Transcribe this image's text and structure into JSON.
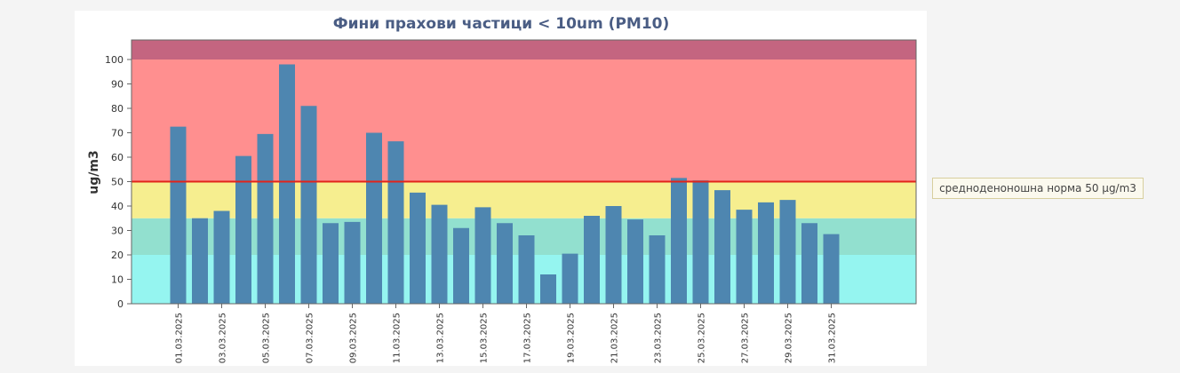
{
  "chart_data": {
    "type": "bar",
    "title": "Фини прахови частици < 10um (PM10)",
    "ylabel": "ug/m3",
    "xlabel": "",
    "ylim": [
      0,
      108
    ],
    "yticks": [
      0,
      10,
      20,
      30,
      40,
      50,
      60,
      70,
      80,
      90,
      100
    ],
    "grid": false,
    "categories": [
      "01.03.2025",
      "02.03.2025",
      "03.03.2025",
      "04.03.2025",
      "05.03.2025",
      "06.03.2025",
      "07.03.2025",
      "08.03.2025",
      "09.03.2025",
      "10.03.2025",
      "11.03.2025",
      "12.03.2025",
      "13.03.2025",
      "14.03.2025",
      "15.03.2025",
      "16.03.2025",
      "17.03.2025",
      "18.03.2025",
      "19.03.2025",
      "20.03.2025",
      "21.03.2025",
      "22.03.2025",
      "23.03.2025",
      "24.03.2025",
      "25.03.2025",
      "26.03.2025",
      "27.03.2025",
      "28.03.2025",
      "29.03.2025",
      "30.03.2025",
      "31.03.2025"
    ],
    "tick_labels": [
      "01.03.2025",
      "03.03.2025",
      "05.03.2025",
      "07.03.2025",
      "09.03.2025",
      "11.03.2025",
      "13.03.2025",
      "15.03.2025",
      "17.03.2025",
      "19.03.2025",
      "21.03.2025",
      "23.03.2025",
      "25.03.2025",
      "27.03.2025",
      "29.03.2025",
      "31.03.2025"
    ],
    "values": [
      72.5,
      35,
      38,
      60.5,
      69.5,
      98,
      81,
      33,
      33.5,
      70,
      66.5,
      45.5,
      40.5,
      31,
      39.5,
      33,
      28,
      12,
      20.5,
      36,
      40,
      34.5,
      28,
      51.5,
      50.5,
      46.5,
      38.5,
      41.5,
      42.5,
      33,
      28.5
    ],
    "bar_color": "#4e86b0",
    "threshold": {
      "value": 50,
      "color": "#e2231a",
      "label": "средноденоношна норма 50 µg/m3"
    },
    "bands": [
      {
        "from": 0,
        "to": 20,
        "color": "#95f5f0"
      },
      {
        "from": 20,
        "to": 35,
        "color": "#92e0cf"
      },
      {
        "from": 35,
        "to": 50,
        "color": "#f6ee8f"
      },
      {
        "from": 50,
        "to": 100,
        "color": "#ff8f8f"
      },
      {
        "from": 100,
        "to": 108,
        "color": "#c46580"
      }
    ]
  }
}
